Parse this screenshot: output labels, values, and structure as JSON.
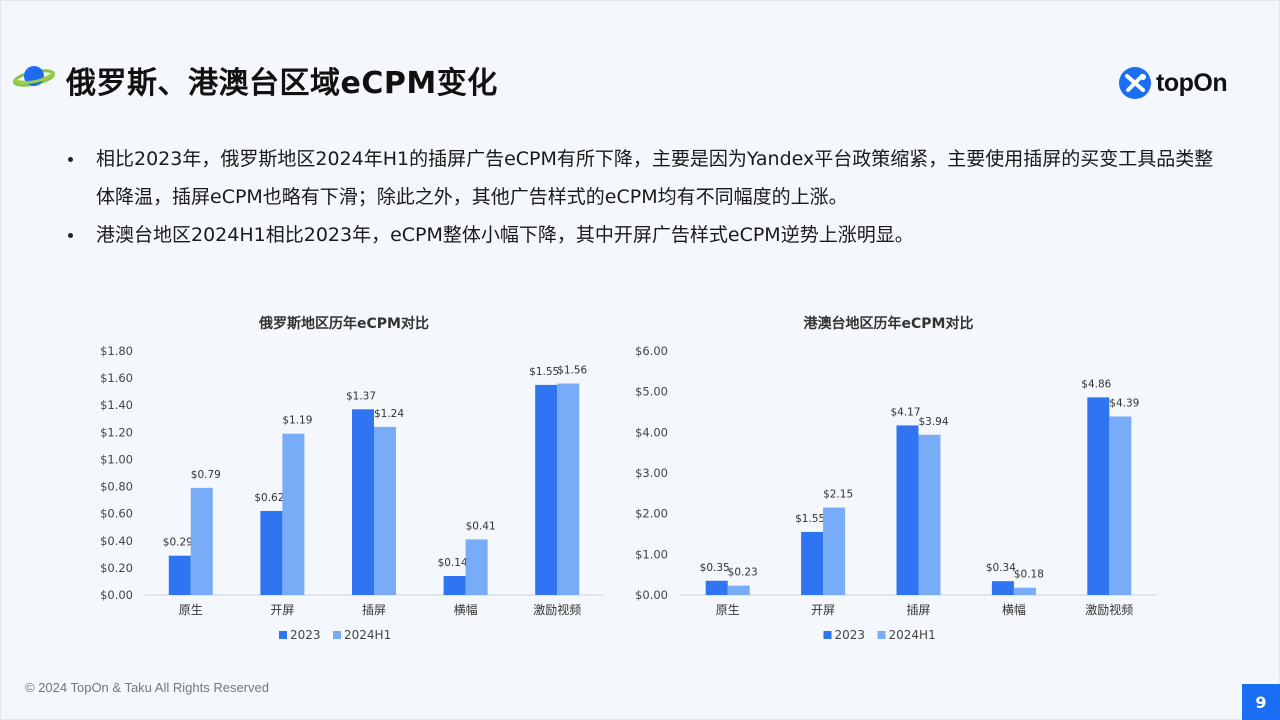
{
  "title": "俄罗斯、港澳台区域eCPM变化",
  "logo_text": "topOn",
  "bullets": [
    "相比2023年，俄罗斯地区2024年H1的插屏广告eCPM有所下降，主要是因为Yandex平台政策缩紧，主要使用插屏的买变工具品类整体降温，插屏eCPM也略有下滑；除此之外，其他广告样式的eCPM均有不同幅度的上涨。",
    "港澳台地区2024H1相比2023年，eCPM整体小幅下降，其中开屏广告样式eCPM逆势上涨明显。"
  ],
  "colors": {
    "series_2023": "#2f74f0",
    "series_2024H1": "#78acf7",
    "accent": "#1b6ef3"
  },
  "chart_data": [
    {
      "type": "bar",
      "title": "俄罗斯地区历年eCPM对比",
      "categories": [
        "原生",
        "开屏",
        "插屏",
        "横幅",
        "激励视频"
      ],
      "series": [
        {
          "name": "2023",
          "values": [
            0.29,
            0.62,
            1.37,
            0.14,
            1.55
          ],
          "labels": [
            "$0.29",
            "$0.62",
            "$1.37",
            "$0.14",
            "$1.55"
          ]
        },
        {
          "name": "2024H1",
          "values": [
            0.79,
            1.19,
            1.24,
            0.41,
            1.56
          ],
          "labels": [
            "$0.79",
            "$1.19",
            "$1.24",
            "$0.41",
            "$1.56"
          ]
        }
      ],
      "yticks": [
        "$0.00",
        "$0.20",
        "$0.40",
        "$0.60",
        "$0.80",
        "$1.00",
        "$1.20",
        "$1.40",
        "$1.60",
        "$1.80"
      ],
      "ylim": [
        0,
        1.8
      ],
      "legend": "bottom",
      "grid": false
    },
    {
      "type": "bar",
      "title": "港澳台地区历年eCPM对比",
      "categories": [
        "原生",
        "开屏",
        "插屏",
        "横幅",
        "激励视频"
      ],
      "series": [
        {
          "name": "2023",
          "values": [
            0.35,
            1.55,
            4.17,
            0.34,
            4.86
          ],
          "labels": [
            "$0.35",
            "$1.55",
            "$4.17",
            "$0.34",
            "$4.86"
          ]
        },
        {
          "name": "2024H1",
          "values": [
            0.23,
            2.15,
            3.94,
            0.18,
            4.39
          ],
          "labels": [
            "$0.23",
            "$2.15",
            "$3.94",
            "$0.18",
            "$4.39"
          ]
        }
      ],
      "yticks": [
        "$0.00",
        "$1.00",
        "$2.00",
        "$3.00",
        "$4.00",
        "$5.00",
        "$6.00"
      ],
      "ylim": [
        0,
        6
      ],
      "legend": "bottom",
      "grid": false
    }
  ],
  "footer": "© 2024 TopOn & Taku All Rights Reserved",
  "page_number": "9"
}
